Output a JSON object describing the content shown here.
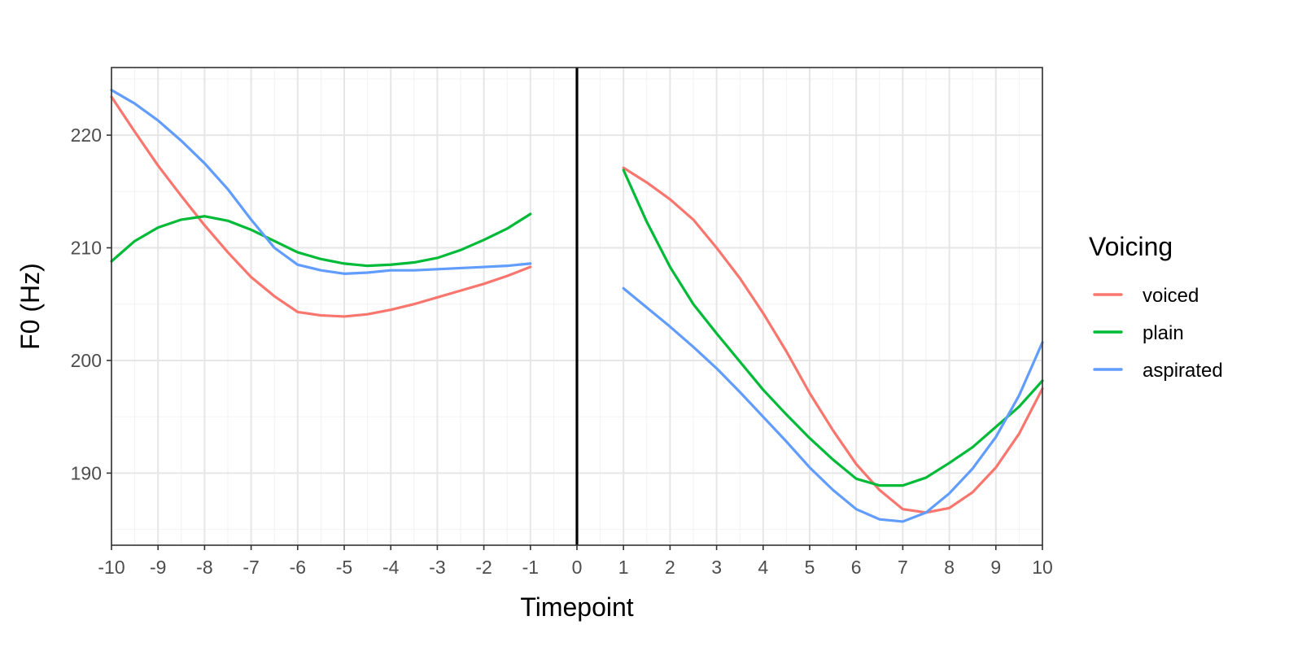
{
  "chart_data": {
    "type": "line",
    "title": "",
    "xlabel": "Timepoint",
    "ylabel": "F0 (Hz)",
    "xlim": [
      -10,
      10
    ],
    "ylim": [
      183.6,
      226.0
    ],
    "x_ticks": [
      -10,
      -9,
      -8,
      -7,
      -6,
      -5,
      -4,
      -3,
      -2,
      -1,
      0,
      1,
      2,
      3,
      4,
      5,
      6,
      7,
      8,
      9,
      10
    ],
    "y_ticks": [
      190,
      200,
      210,
      220
    ],
    "grid": true,
    "vertical_reference_line": 0,
    "legend": {
      "title": "Voicing",
      "placement": "right"
    },
    "series": [
      {
        "name": "voiced",
        "color": "#F8766D",
        "segments": [
          {
            "x": [
              -10,
              -9.5,
              -9,
              -8.5,
              -8,
              -7.5,
              -7,
              -6.5,
              -6,
              -5.5,
              -5,
              -4.5,
              -4,
              -3.5,
              -3,
              -2.5,
              -2,
              -1.5,
              -1
            ],
            "y": [
              223.4,
              220.3,
              217.3,
              214.6,
              212.0,
              209.6,
              207.4,
              205.7,
              204.3,
              204.0,
              203.9,
              204.1,
              204.5,
              205.0,
              205.6,
              206.2,
              206.8,
              207.5,
              208.3
            ]
          },
          {
            "x": [
              1,
              1.5,
              2,
              2.5,
              3,
              3.5,
              4,
              4.5,
              5,
              5.5,
              6,
              6.5,
              7,
              7.5,
              8,
              8.5,
              9,
              9.5,
              10
            ],
            "y": [
              217.1,
              215.8,
              214.3,
              212.5,
              210.0,
              207.3,
              204.2,
              200.8,
              197.1,
              193.8,
              190.8,
              188.5,
              186.8,
              186.5,
              186.9,
              188.3,
              190.5,
              193.5,
              197.5
            ]
          }
        ]
      },
      {
        "name": "plain",
        "color": "#00BA38",
        "segments": [
          {
            "x": [
              -10,
              -9.5,
              -9,
              -8.5,
              -8,
              -7.5,
              -7,
              -6.5,
              -6,
              -5.5,
              -5,
              -4.5,
              -4,
              -3.5,
              -3,
              -2.5,
              -2,
              -1.5,
              -1
            ],
            "y": [
              208.8,
              210.6,
              211.8,
              212.5,
              212.8,
              212.4,
              211.6,
              210.6,
              209.6,
              209.0,
              208.6,
              208.4,
              208.5,
              208.7,
              209.1,
              209.8,
              210.7,
              211.7,
              213.0
            ]
          },
          {
            "x": [
              1,
              1.5,
              2,
              2.5,
              3,
              3.5,
              4,
              4.5,
              5,
              5.5,
              6,
              6.5,
              7,
              7.5,
              8,
              8.5,
              9,
              9.5,
              10
            ],
            "y": [
              216.9,
              212.3,
              208.3,
              205.0,
              202.4,
              199.9,
              197.4,
              195.2,
              193.1,
              191.2,
              189.5,
              188.9,
              188.9,
              189.6,
              190.9,
              192.3,
              194.1,
              195.9,
              198.2
            ]
          }
        ]
      },
      {
        "name": "aspirated",
        "color": "#619CFF",
        "segments": [
          {
            "x": [
              -10,
              -9.5,
              -9,
              -8.5,
              -8,
              -7.5,
              -7,
              -6.5,
              -6,
              -5.5,
              -5,
              -4.5,
              -4,
              -3.5,
              -3,
              -2.5,
              -2,
              -1.5,
              -1
            ],
            "y": [
              224.0,
              222.8,
              221.3,
              219.5,
              217.5,
              215.2,
              212.5,
              210.0,
              208.5,
              208.0,
              207.7,
              207.8,
              208.0,
              208.0,
              208.1,
              208.2,
              208.3,
              208.4,
              208.6
            ]
          },
          {
            "x": [
              1,
              1.5,
              2,
              2.5,
              3,
              3.5,
              4,
              4.5,
              5,
              5.5,
              6,
              6.5,
              7,
              7.5,
              8,
              8.5,
              9,
              9.5,
              10
            ],
            "y": [
              206.4,
              204.7,
              203.0,
              201.2,
              199.3,
              197.2,
              195.0,
              192.8,
              190.5,
              188.5,
              186.8,
              185.9,
              185.7,
              186.5,
              188.2,
              190.4,
              193.2,
              196.9,
              201.6
            ]
          }
        ]
      }
    ]
  }
}
